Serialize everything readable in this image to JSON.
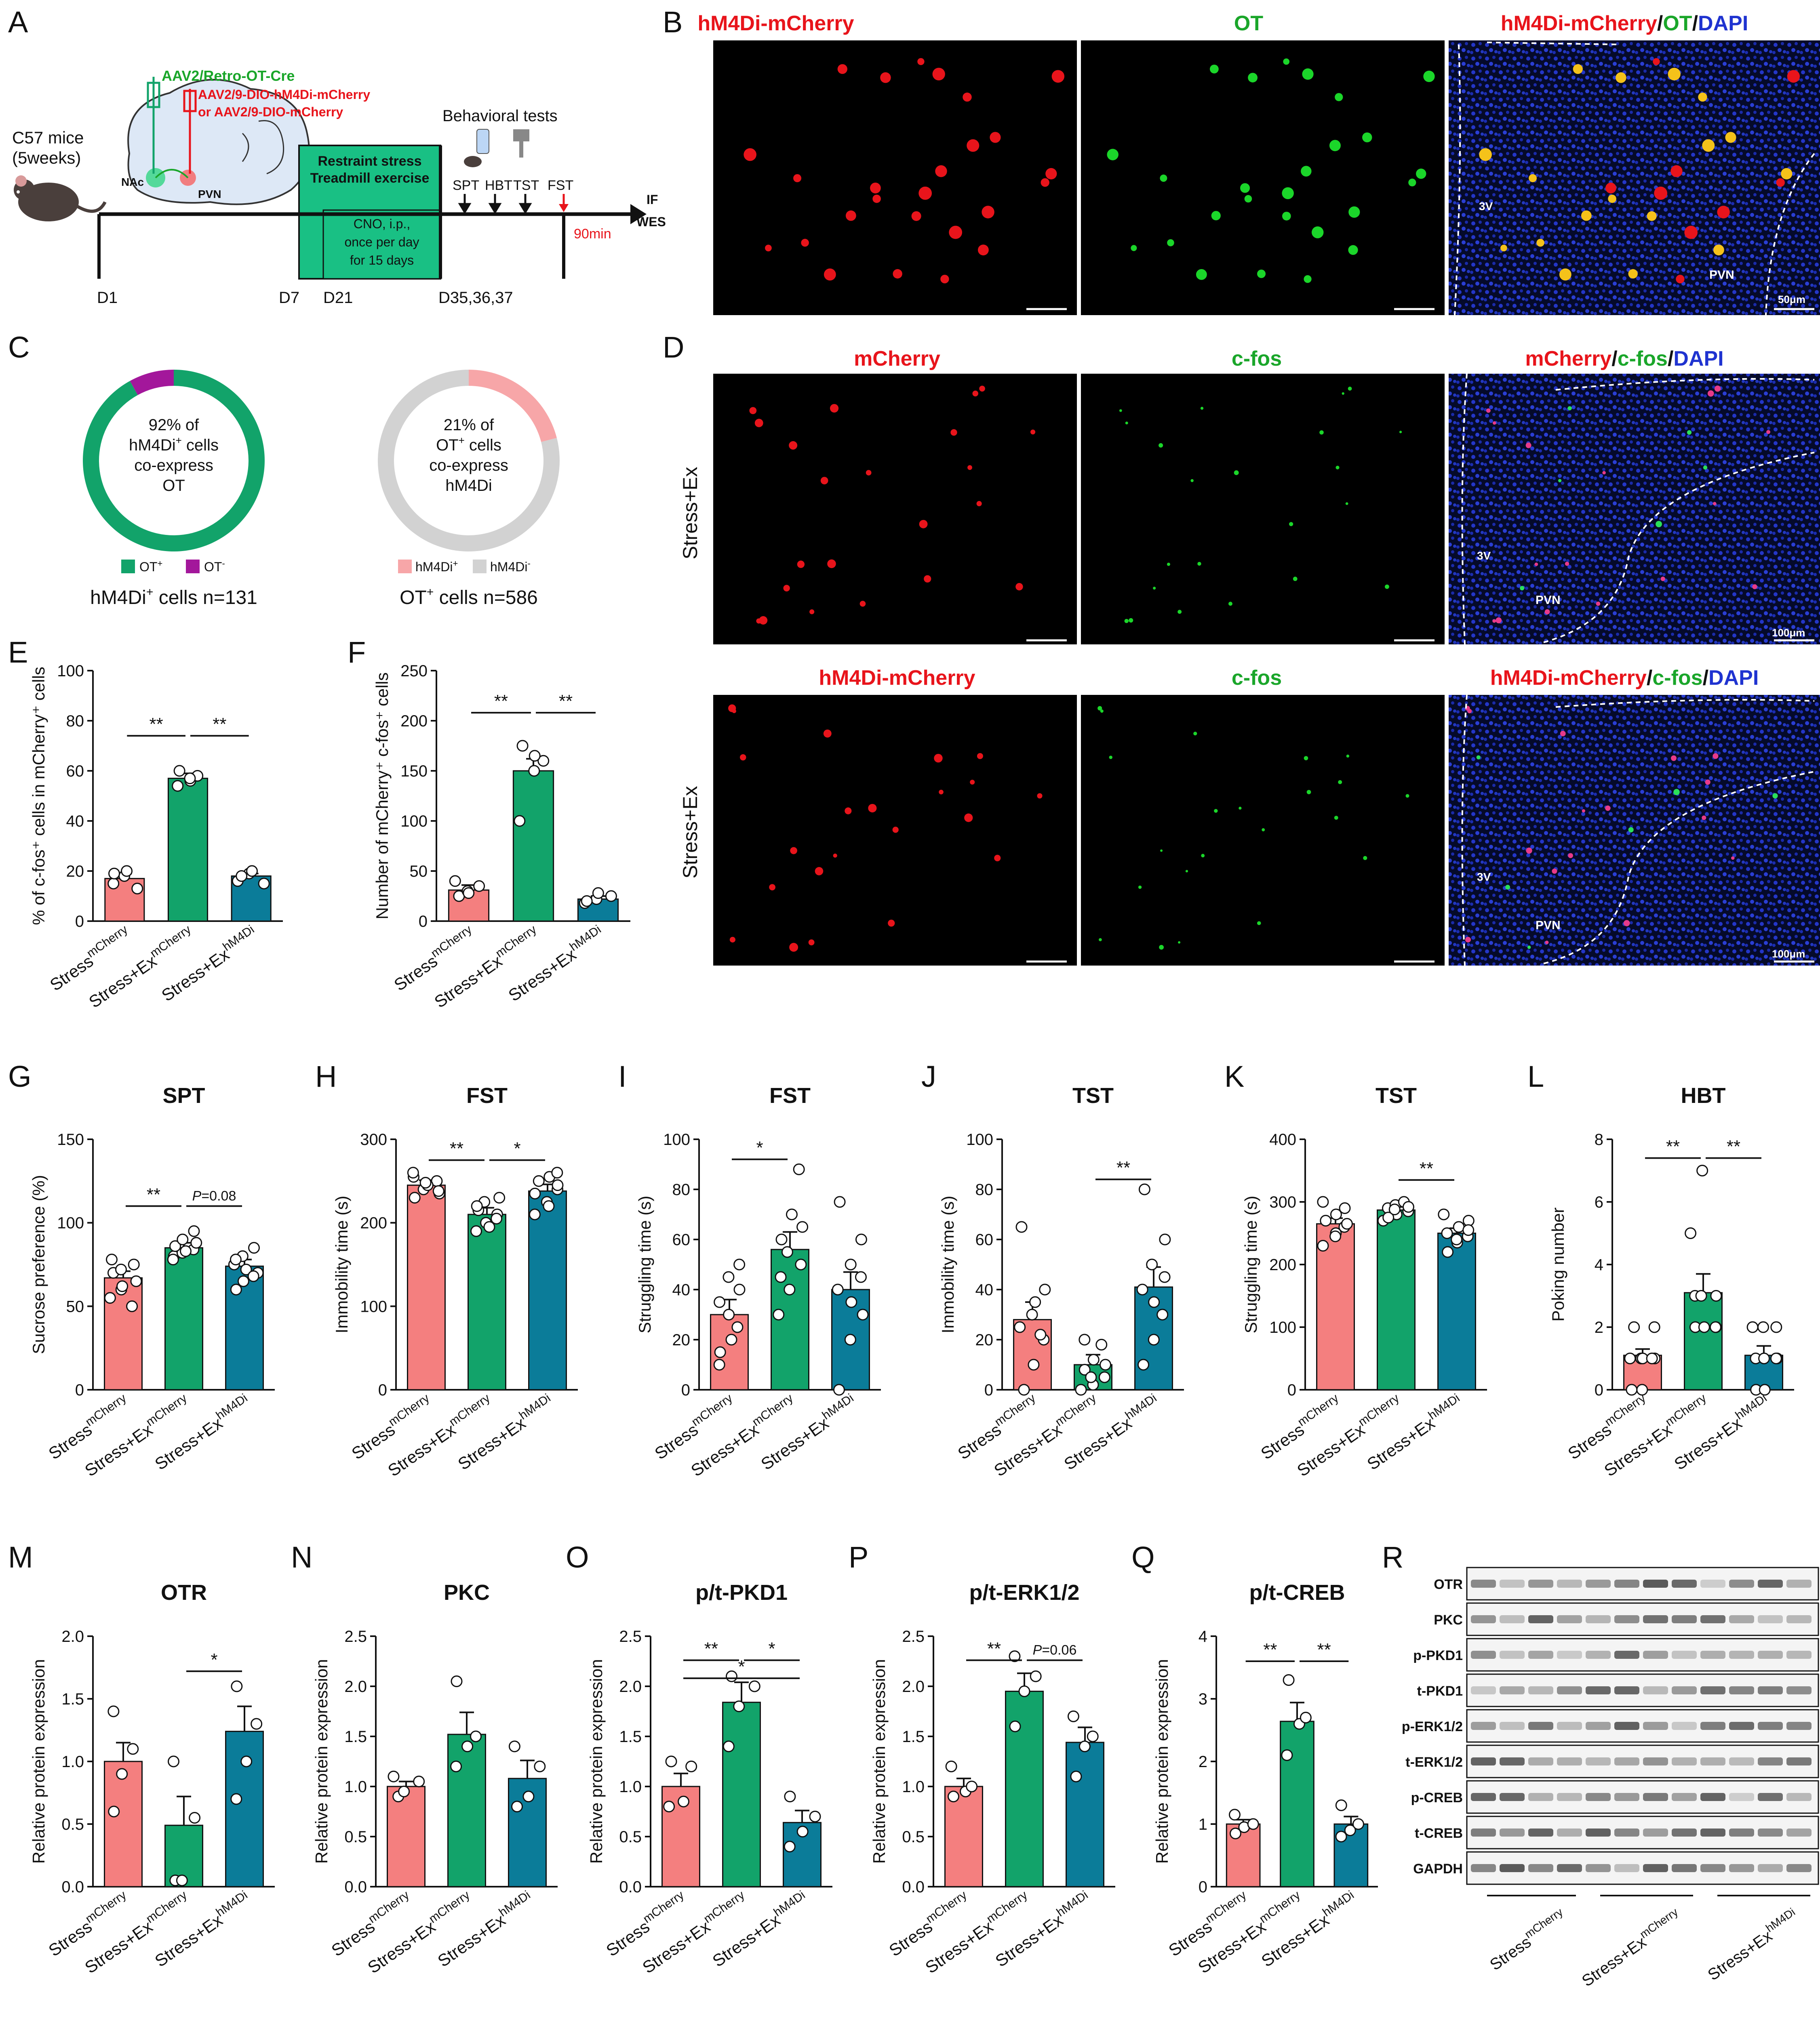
{
  "colors": {
    "red": "#F47F7F",
    "green": "#12A36A",
    "teal": "#0B7C99",
    "pink": "#F7A6A8",
    "grey": "#D2D2D2",
    "purple": "#A3179B",
    "label_red": "#E8141B",
    "label_green": "#1AA62A",
    "label_blue": "#1F33D0"
  },
  "panel_letters": {
    "A": "A",
    "B": "B",
    "C": "C",
    "D": "D",
    "E": "E",
    "F": "F",
    "G": "G",
    "H": "H",
    "I": "I",
    "J": "J",
    "K": "K",
    "L": "L",
    "M": "M",
    "N": "N",
    "O": "O",
    "P": "P",
    "Q": "Q",
    "R": "R"
  },
  "panelA": {
    "virus_green": "AAV2/Retro-OT-Cre",
    "virus_red1": "AAV2/9-DIO-hM4Di-mCherry",
    "virus_red2": "or AAV2/9-DIO-mCherry",
    "mice1": "C57 mice",
    "mice2": "(5weeks)",
    "nac": "NAc",
    "pvn": "PVN",
    "box1": "Restraint stress",
    "box2": "Treadmill exercise",
    "cno1": "CNO, i.p.,",
    "cno2": "once per day",
    "cno3": "for 15 days",
    "behav": "Behavioral tests",
    "tests": [
      "SPT",
      "HBT",
      "TST",
      "FST"
    ],
    "min90": "90min",
    "if": "IF",
    "wes": "WES",
    "days": [
      "D1",
      "D7",
      "D21",
      "D35,36,37"
    ]
  },
  "panelB": {
    "t1": "hM4Di-mCherry",
    "t2": "OT",
    "t3a": "hM4Di-mCherry",
    "t3b": "/",
    "t3c": "OT",
    "t3d": "/",
    "t3e": "DAPI",
    "l3v": "3V",
    "lpvn": "PVN",
    "scale": "50μm"
  },
  "panelC": {
    "d1": {
      "l1": "92% of",
      "l2": "hM4Di",
      "l2sup": "+",
      "l2b": " cells",
      "l3": "co-express",
      "l4": "OT",
      "legend1": "OT",
      "legend1sup": "+",
      "legend2": "OT",
      "legend2sup": "-",
      "footer": "hM4Di",
      "footersup": "+",
      "footer2": " cells n=131"
    },
    "d2": {
      "l1": "21% of",
      "l2": "OT",
      "l2sup": "+",
      "l2b": " cells",
      "l3": "co-express",
      "l4": "hM4Di",
      "legend1": "hM4Di",
      "legend1sup": "+",
      "legend2": "hM4Di",
      "legend2sup": "-",
      "footer": "OT",
      "footersup": "+",
      "footer2": " cells n=586"
    },
    "donut1_values": [
      92,
      8
    ],
    "donut2_values": [
      21,
      79
    ]
  },
  "panelD": {
    "r1": {
      "t1": "mCherry",
      "t2": "c-fos",
      "t3a": "mCherry",
      "t3b": "/",
      "t3c": "c-fos",
      "t3d": "/",
      "t3e": "DAPI",
      "side": "Stress+Ex"
    },
    "r2": {
      "t1": "hM4Di-mCherry",
      "t2": "c-fos",
      "t3a": "hM4Di-mCherry",
      "t3b": "/",
      "t3c": "c-fos",
      "t3d": "/",
      "t3e": "DAPI",
      "side": "Stress+Ex"
    },
    "l3v": "3V",
    "lpvn": "PVN",
    "scale": "100μm"
  },
  "group_labels": {
    "g1a": "Stress",
    "g1b": "mCherry",
    "g2a": "Stress+Ex",
    "g2b": "mCherry",
    "g3a": "Stress+Ex",
    "g3b": "hM4Di"
  },
  "panelR": {
    "rows": [
      "OTR",
      "PKC",
      "p-PKD1",
      "t-PKD1",
      "p-ERK1/2",
      "t-ERK1/2",
      "p-CREB",
      "t-CREB",
      "GAPDH"
    ]
  },
  "chart_data": [
    {
      "id": "E",
      "type": "bar",
      "title": "",
      "ylabel": "% of c-fos⁺ cells in mCherry⁺ cells",
      "ylim": [
        0,
        100
      ],
      "yticks": [
        "0",
        "20",
        "40",
        "60",
        "80",
        "100"
      ],
      "categories": [
        "Stress mCherry",
        "Stress+Ex mCherry",
        "Stress+Ex hM4Di"
      ],
      "values": [
        17,
        57,
        18
      ],
      "errors": [
        2,
        2,
        1
      ],
      "points": [
        [
          15,
          18,
          13,
          19,
          20
        ],
        [
          54,
          56,
          58,
          60,
          57
        ],
        [
          16,
          19,
          15,
          18,
          20
        ]
      ],
      "sig": [
        {
          "a": 0,
          "b": 1,
          "text": "**",
          "y": 74
        },
        {
          "a": 1,
          "b": 2,
          "text": "**",
          "y": 74
        }
      ]
    },
    {
      "id": "F",
      "type": "bar",
      "title": "",
      "ylabel": "Number of mCherry⁺ c-fos⁺ cells",
      "ylim": [
        0,
        250
      ],
      "yticks": [
        "0",
        "50",
        "100",
        "150",
        "200",
        "250"
      ],
      "categories": [
        "Stress mCherry",
        "Stress+Ex mCherry",
        "Stress+Ex hM4Di"
      ],
      "values": [
        31,
        150,
        22
      ],
      "errors": [
        5,
        12,
        3
      ],
      "points": [
        [
          25,
          30,
          35,
          40,
          28
        ],
        [
          100,
          150,
          160,
          175,
          165
        ],
        [
          18,
          22,
          25,
          20,
          28
        ]
      ],
      "sig": [
        {
          "a": 0,
          "b": 1,
          "text": "**",
          "y": 208
        },
        {
          "a": 1,
          "b": 2,
          "text": "**",
          "y": 208
        }
      ]
    },
    {
      "id": "G",
      "type": "bar",
      "title": "SPT",
      "ylabel": "Sucrose preference (%)",
      "ylim": [
        0,
        150
      ],
      "yticks": [
        "0",
        "50",
        "100",
        "150"
      ],
      "categories": [
        "Stress mCherry",
        "Stress+Ex mCherry",
        "Stress+Ex hM4Di"
      ],
      "values": [
        67,
        85,
        74
      ],
      "errors": [
        4,
        3,
        4
      ],
      "points": [
        [
          55,
          60,
          65,
          70,
          72,
          75,
          78,
          62,
          50
        ],
        [
          80,
          82,
          84,
          86,
          90,
          95,
          78,
          83,
          88
        ],
        [
          60,
          65,
          70,
          75,
          80,
          85,
          78,
          72,
          68
        ]
      ],
      "sig": [
        {
          "a": 0,
          "b": 1,
          "text": "**",
          "y": 110
        },
        {
          "a": 1,
          "b": 2,
          "text": "P=0.08",
          "y": 110
        }
      ]
    },
    {
      "id": "H",
      "type": "bar",
      "title": "FST",
      "ylabel": "Immobility time (s)",
      "ylim": [
        0,
        300
      ],
      "yticks": [
        "0",
        "100",
        "200",
        "300"
      ],
      "categories": [
        "Stress mCherry",
        "Stress+Ex mCherry",
        "Stress+Ex hM4Di"
      ],
      "values": [
        245,
        210,
        238
      ],
      "errors": [
        6,
        8,
        8
      ],
      "points": [
        [
          230,
          240,
          250,
          255,
          245,
          235,
          260,
          248,
          238
        ],
        [
          190,
          200,
          210,
          215,
          225,
          205,
          220,
          195,
          230
        ],
        [
          210,
          225,
          240,
          250,
          255,
          245,
          235,
          220,
          260
        ]
      ],
      "sig": [
        {
          "a": 0,
          "b": 1,
          "text": "**",
          "y": 275
        },
        {
          "a": 1,
          "b": 2,
          "text": "*",
          "y": 275
        }
      ]
    },
    {
      "id": "I",
      "type": "bar",
      "title": "FST",
      "ylabel": "Struggling time (s)",
      "ylim": [
        0,
        100
      ],
      "yticks": [
        "0",
        "20",
        "40",
        "60",
        "80",
        "100"
      ],
      "categories": [
        "Stress mCherry",
        "Stress+Ex mCherry",
        "Stress+Ex hM4Di"
      ],
      "values": [
        30,
        56,
        40
      ],
      "errors": [
        6,
        7,
        7
      ],
      "points": [
        [
          10,
          20,
          25,
          35,
          45,
          50,
          15,
          30,
          40
        ],
        [
          30,
          40,
          50,
          60,
          70,
          88,
          45,
          55,
          65
        ],
        [
          0,
          20,
          30,
          40,
          50,
          60,
          75,
          35,
          45
        ]
      ],
      "sig": [
        {
          "a": 0,
          "b": 1,
          "text": "*",
          "y": 92
        }
      ]
    },
    {
      "id": "J",
      "type": "bar",
      "title": "TST",
      "ylabel": "Immobility time (s)",
      "ylim": [
        0,
        100
      ],
      "yticks": [
        "0",
        "20",
        "40",
        "60",
        "80",
        "100"
      ],
      "categories": [
        "Stress mCherry",
        "Stress+Ex mCherry",
        "Stress+Ex hM4Di"
      ],
      "values": [
        28,
        10,
        41
      ],
      "errors": [
        7,
        4,
        8
      ],
      "points": [
        [
          0,
          10,
          20,
          25,
          35,
          40,
          65,
          30,
          22
        ],
        [
          0,
          2,
          5,
          8,
          12,
          18,
          20,
          5,
          10
        ],
        [
          10,
          20,
          30,
          40,
          50,
          60,
          80,
          35,
          45
        ]
      ],
      "sig": [
        {
          "a": 1,
          "b": 2,
          "text": "**",
          "y": 84
        }
      ]
    },
    {
      "id": "K",
      "type": "bar",
      "title": "TST",
      "ylabel": "Struggling time (s)",
      "ylim": [
        0,
        400
      ],
      "yticks": [
        "0",
        "100",
        "200",
        "300",
        "400"
      ],
      "categories": [
        "Stress mCherry",
        "Stress+Ex mCherry",
        "Stress+Ex hM4Di"
      ],
      "values": [
        265,
        287,
        250
      ],
      "errors": [
        9,
        5,
        8
      ],
      "points": [
        [
          230,
          250,
          260,
          270,
          280,
          290,
          300,
          245,
          265
        ],
        [
          270,
          280,
          285,
          290,
          295,
          300,
          275,
          288,
          292
        ],
        [
          220,
          235,
          245,
          250,
          260,
          270,
          280,
          240,
          255
        ]
      ],
      "sig": [
        {
          "a": 1,
          "b": 2,
          "text": "**",
          "y": 335
        }
      ]
    },
    {
      "id": "L",
      "type": "bar",
      "title": "HBT",
      "ylabel": "Poking number",
      "ylim": [
        0,
        8
      ],
      "yticks": [
        "0",
        "2",
        "4",
        "6",
        "8"
      ],
      "categories": [
        "Stress mCherry",
        "Stress+Ex mCherry",
        "Stress+Ex hM4Di"
      ],
      "values": [
        1.1,
        3.1,
        1.1
      ],
      "errors": [
        0.2,
        0.6,
        0.3
      ],
      "points": [
        [
          0,
          0,
          1,
          1,
          1,
          2,
          2,
          1,
          1
        ],
        [
          2,
          2,
          2,
          3,
          3,
          3,
          5,
          7,
          2
        ],
        [
          0,
          0,
          1,
          1,
          1,
          2,
          2,
          2,
          1
        ]
      ],
      "sig": [
        {
          "a": 0,
          "b": 1,
          "text": "**",
          "y": 7.4
        },
        {
          "a": 1,
          "b": 2,
          "text": "**",
          "y": 7.4
        }
      ]
    },
    {
      "id": "M",
      "type": "bar",
      "title": "OTR",
      "ylabel": "Relative protein expression",
      "ylim": [
        0,
        2.0
      ],
      "yticks": [
        "0.0",
        "0.5",
        "1.0",
        "1.5",
        "2.0"
      ],
      "categories": [
        "Stress mCherry",
        "Stress+Ex mCherry",
        "Stress+Ex hM4Di"
      ],
      "values": [
        1.0,
        0.49,
        1.24
      ],
      "errors": [
        0.15,
        0.23,
        0.2
      ],
      "points": [
        [
          0.6,
          0.9,
          1.1,
          1.4
        ],
        [
          0.05,
          0.05,
          0.55,
          1.0
        ],
        [
          0.7,
          1.0,
          1.3,
          1.6
        ]
      ],
      "sig": [
        {
          "a": 1,
          "b": 2,
          "text": "*",
          "y": 1.72
        }
      ]
    },
    {
      "id": "N",
      "type": "bar",
      "title": "PKC",
      "ylabel": "Relative protein expression",
      "ylim": [
        0,
        2.5
      ],
      "yticks": [
        "0.0",
        "0.5",
        "1.0",
        "1.5",
        "2.0",
        "2.5"
      ],
      "categories": [
        "Stress mCherry",
        "Stress+Ex mCherry",
        "Stress+Ex hM4Di"
      ],
      "values": [
        1.0,
        1.52,
        1.08
      ],
      "errors": [
        0.05,
        0.22,
        0.18
      ],
      "points": [
        [
          0.9,
          0.95,
          1.05,
          1.1
        ],
        [
          1.2,
          1.4,
          1.5,
          2.05
        ],
        [
          0.8,
          0.9,
          1.2,
          1.4
        ]
      ],
      "sig": []
    },
    {
      "id": "O",
      "type": "bar",
      "title": "p/t-PKD1",
      "ylabel": "Relative protein expression",
      "ylim": [
        0,
        2.5
      ],
      "yticks": [
        "0.0",
        "0.5",
        "1.0",
        "1.5",
        "2.0",
        "2.5"
      ],
      "categories": [
        "Stress mCherry",
        "Stress+Ex mCherry",
        "Stress+Ex hM4Di"
      ],
      "values": [
        1.0,
        1.84,
        0.64
      ],
      "errors": [
        0.13,
        0.2,
        0.12
      ],
      "points": [
        [
          0.8,
          0.85,
          1.2,
          1.25
        ],
        [
          1.4,
          1.8,
          2.0,
          2.1
        ],
        [
          0.4,
          0.55,
          0.7,
          0.9
        ]
      ],
      "sig": [
        {
          "a": 0,
          "b": 1,
          "text": "**",
          "y": 2.26
        },
        {
          "a": 1,
          "b": 2,
          "text": "*",
          "y": 2.26
        },
        {
          "a": 0,
          "b": 2,
          "text": "*",
          "y": 2.08
        }
      ]
    },
    {
      "id": "P",
      "type": "bar",
      "title": "p/t-ERK1/2",
      "ylabel": "Relative protein expression",
      "ylim": [
        0,
        2.5
      ],
      "yticks": [
        "0.0",
        "0.5",
        "1.0",
        "1.5",
        "2.0",
        "2.5"
      ],
      "categories": [
        "Stress mCherry",
        "Stress+Ex mCherry",
        "Stress+Ex hM4Di"
      ],
      "values": [
        1.0,
        1.95,
        1.44
      ],
      "errors": [
        0.08,
        0.18,
        0.15
      ],
      "points": [
        [
          0.9,
          0.95,
          1.0,
          1.2
        ],
        [
          1.6,
          1.95,
          2.1,
          2.3
        ],
        [
          1.1,
          1.4,
          1.5,
          1.7
        ]
      ],
      "sig": [
        {
          "a": 0,
          "b": 1,
          "text": "**",
          "y": 2.26
        },
        {
          "a": 1,
          "b": 2,
          "text": "P=0.06",
          "y": 2.26
        }
      ]
    },
    {
      "id": "Q",
      "type": "bar",
      "title": "p/t-CREB",
      "ylabel": "Relative protein expression",
      "ylim": [
        0,
        4
      ],
      "yticks": [
        "0",
        "1",
        "2",
        "3",
        "4"
      ],
      "categories": [
        "Stress mCherry",
        "Stress+Ex mCherry",
        "Stress+Ex hM4Di"
      ],
      "values": [
        1.0,
        2.64,
        1.0
      ],
      "errors": [
        0.07,
        0.3,
        0.12
      ],
      "points": [
        [
          0.85,
          0.95,
          1.0,
          1.15
        ],
        [
          2.1,
          2.6,
          2.7,
          3.3
        ],
        [
          0.8,
          0.9,
          1.0,
          1.3
        ]
      ],
      "sig": [
        {
          "a": 0,
          "b": 1,
          "text": "**",
          "y": 3.6
        },
        {
          "a": 1,
          "b": 2,
          "text": "**",
          "y": 3.6
        }
      ]
    }
  ]
}
